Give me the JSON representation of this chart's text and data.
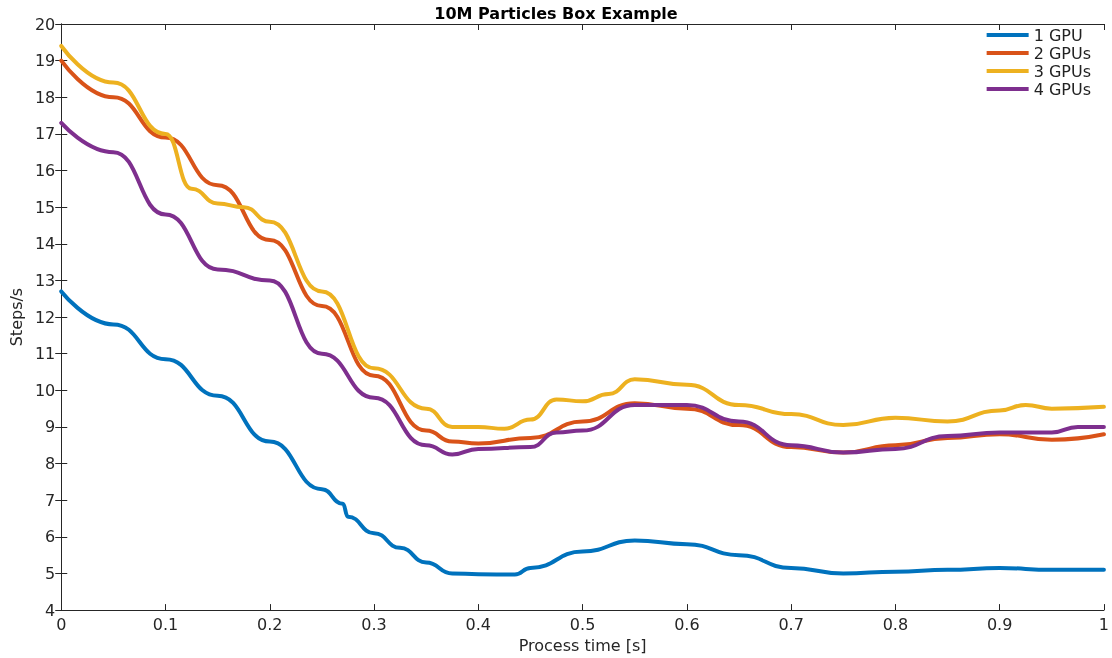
{
  "chart_data": {
    "type": "line",
    "title": "10M Particles Box Example",
    "xlabel": "Process time [s]",
    "ylabel": "Steps/s",
    "xlim": [
      0,
      1
    ],
    "xticks": [
      0,
      0.1,
      0.2,
      0.3,
      0.4,
      0.5,
      0.6,
      0.7,
      0.8,
      0.9,
      1
    ],
    "ylim": [
      4,
      20
    ],
    "yticks": [
      4,
      5,
      6,
      7,
      8,
      9,
      10,
      11,
      12,
      13,
      14,
      15,
      16,
      17,
      18,
      19,
      20
    ],
    "grid": false,
    "legend": "top right",
    "marker": "none",
    "line_style": "solid",
    "series": [
      {
        "name": "1 GPU",
        "color": "#0072bd",
        "x": [
          0,
          0.05,
          0.1,
          0.15,
          0.2,
          0.25,
          0.27,
          0.275,
          0.3,
          0.325,
          0.35,
          0.375,
          0.4,
          0.435,
          0.45,
          0.5,
          0.55,
          0.6,
          0.65,
          0.7,
          0.75,
          0.8,
          0.85,
          0.9,
          0.95,
          1
        ],
        "values": [
          12.7,
          11.8,
          10.85,
          9.85,
          8.6,
          7.3,
          6.9,
          6.55,
          6.1,
          5.7,
          5.3,
          5.0,
          4.98,
          4.97,
          5.15,
          5.6,
          5.9,
          5.8,
          5.5,
          5.15,
          5.0,
          5.05,
          5.1,
          5.15,
          5.1,
          5.1
        ]
      },
      {
        "name": "2 GPUs",
        "color": "#d95319",
        "x": [
          0,
          0.05,
          0.1,
          0.15,
          0.2,
          0.25,
          0.3,
          0.35,
          0.375,
          0.4,
          0.45,
          0.5,
          0.55,
          0.6,
          0.65,
          0.7,
          0.75,
          0.8,
          0.85,
          0.9,
          0.95,
          1
        ],
        "values": [
          19.0,
          18.0,
          16.9,
          15.6,
          14.1,
          12.3,
          10.4,
          8.9,
          8.6,
          8.55,
          8.7,
          9.15,
          9.65,
          9.5,
          9.05,
          8.45,
          8.3,
          8.5,
          8.7,
          8.8,
          8.65,
          8.8
        ]
      },
      {
        "name": "3 GPUs",
        "color": "#edb120",
        "x": [
          0,
          0.05,
          0.1,
          0.125,
          0.15,
          0.175,
          0.2,
          0.25,
          0.3,
          0.35,
          0.375,
          0.4,
          0.425,
          0.45,
          0.475,
          0.5,
          0.525,
          0.55,
          0.6,
          0.65,
          0.7,
          0.75,
          0.8,
          0.85,
          0.9,
          0.925,
          0.95,
          1
        ],
        "values": [
          19.4,
          18.4,
          17.0,
          15.5,
          15.1,
          15.0,
          14.6,
          12.7,
          10.6,
          9.5,
          9.0,
          9.0,
          8.95,
          9.2,
          9.75,
          9.7,
          9.9,
          10.3,
          10.15,
          9.6,
          9.35,
          9.05,
          9.25,
          9.15,
          9.45,
          9.6,
          9.5,
          9.55
        ]
      },
      {
        "name": "4 GPUs",
        "color": "#7e2f8e",
        "x": [
          0,
          0.05,
          0.1,
          0.15,
          0.2,
          0.25,
          0.3,
          0.35,
          0.375,
          0.4,
          0.45,
          0.475,
          0.5,
          0.55,
          0.6,
          0.65,
          0.7,
          0.75,
          0.8,
          0.85,
          0.9,
          0.95,
          0.975,
          1
        ],
        "values": [
          17.3,
          16.5,
          14.8,
          13.3,
          13.0,
          11.0,
          9.8,
          8.5,
          8.25,
          8.4,
          8.45,
          8.85,
          8.9,
          9.6,
          9.6,
          9.15,
          8.5,
          8.3,
          8.4,
          8.75,
          8.85,
          8.85,
          9.0,
          9.0
        ]
      }
    ]
  }
}
